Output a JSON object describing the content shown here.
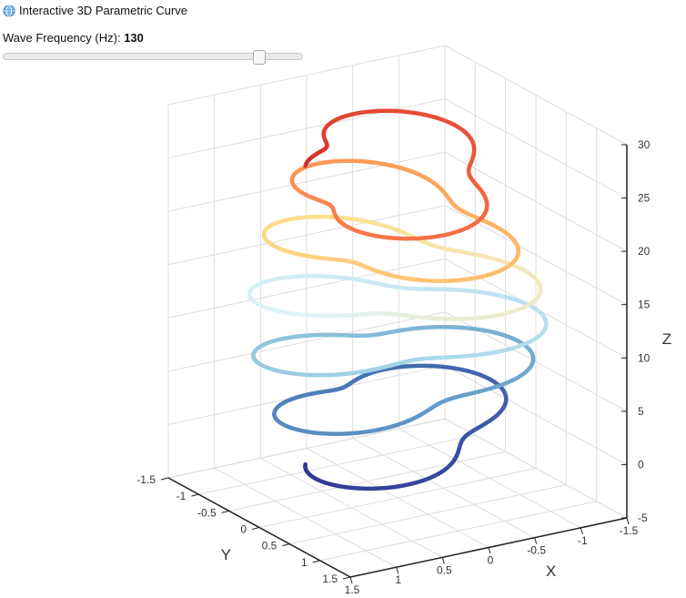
{
  "header": {
    "title": "Interactive 3D Parametric Curve",
    "icon": "globe-icon"
  },
  "control": {
    "label": "Wave Frequency (Hz):",
    "value": "130",
    "slider_fraction": 0.855
  },
  "chart_data": {
    "type": "line3d",
    "title": "",
    "xlabel": "X",
    "ylabel": "Y",
    "zlabel": "Z",
    "xlim": [
      -1.5,
      1.5
    ],
    "ylim": [
      -1.5,
      1.5
    ],
    "zlim": [
      -5,
      30
    ],
    "x_ticks": [
      "-1.5",
      "-1",
      "-0.5",
      "0",
      "0.5",
      "1",
      "1.5"
    ],
    "y_ticks": [
      "-1.5",
      "-1",
      "-0.5",
      "0",
      "0.5",
      "1",
      "1.5"
    ],
    "z_ticks": [
      "-5",
      "0",
      "5",
      "10",
      "15",
      "20",
      "25",
      "30"
    ],
    "grid": true,
    "colormap": [
      "#313695",
      "#4575b4",
      "#74add1",
      "#abd9e9",
      "#e0f3f8",
      "#fee090",
      "#fdae61",
      "#f46d43",
      "#d73027"
    ],
    "curve": {
      "turns": 6,
      "z_range": [
        0,
        28
      ],
      "radius_base": 1,
      "radius_modulation": 0.35,
      "modulation_cycles": 13
    }
  }
}
